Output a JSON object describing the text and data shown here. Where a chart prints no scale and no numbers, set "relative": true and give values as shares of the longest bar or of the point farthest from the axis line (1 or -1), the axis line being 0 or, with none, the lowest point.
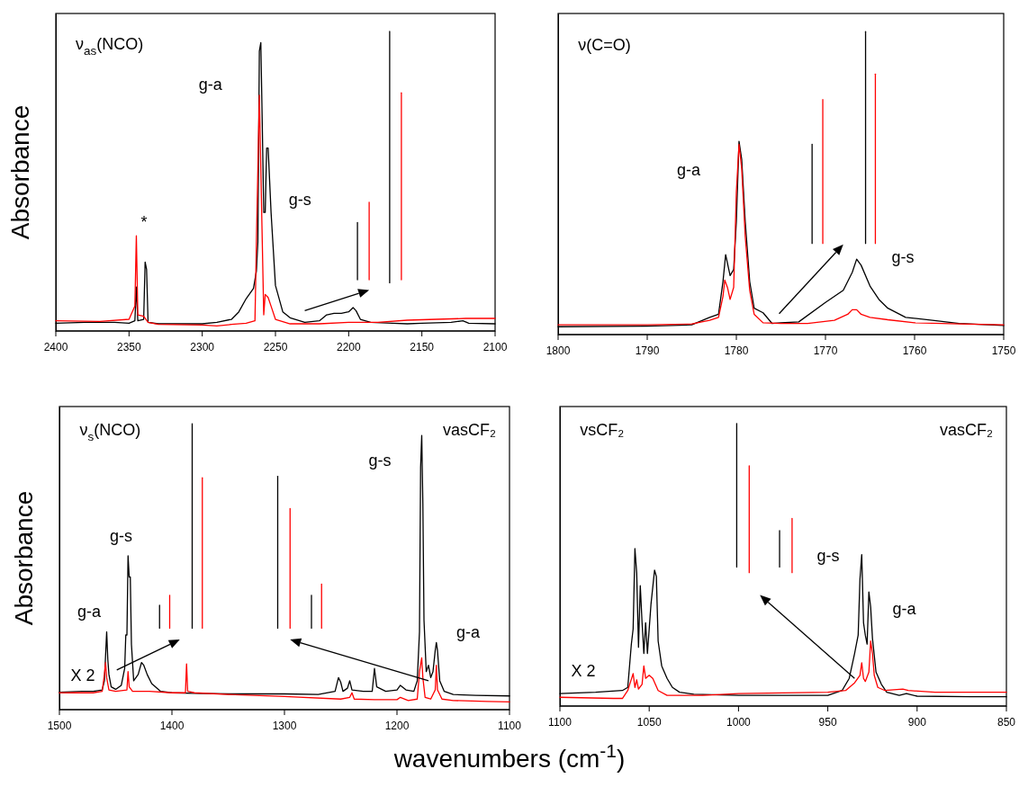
{
  "chart_data": [
    {
      "type": "line",
      "relative": true,
      "ylabel": "Absorbance",
      "xlim": [
        2400,
        2100
      ],
      "xticks": [
        2400,
        2350,
        2300,
        2250,
        2200,
        2150,
        2100
      ],
      "annotations": [
        "ν$_{as}$(NCO)",
        "*",
        "g-a",
        "g-s"
      ],
      "series": [
        {
          "color": "#000000",
          "x": [
            2400,
            2380,
            2360,
            2350,
            2346,
            2345,
            2344,
            2340,
            2339,
            2338,
            2337,
            2330,
            2300,
            2290,
            2280,
            2275,
            2270,
            2265,
            2263,
            2262,
            2261,
            2260,
            2259,
            2258,
            2257,
            2256,
            2255,
            2253,
            2250,
            2245,
            2240,
            2230,
            2220,
            2215,
            2210,
            2205,
            2200,
            2197,
            2195,
            2192,
            2185,
            2170,
            2160,
            2150,
            2130,
            2122,
            2118,
            2100
          ],
          "values": [
            0.026,
            0.029,
            0.029,
            0.026,
            0.034,
            0.147,
            0.034,
            0.039,
            0.23,
            0.205,
            0.029,
            0.024,
            0.024,
            0.029,
            0.039,
            0.064,
            0.108,
            0.142,
            0.2,
            0.298,
            0.934,
            0.963,
            0.689,
            0.396,
            0.396,
            0.611,
            0.611,
            0.396,
            0.152,
            0.064,
            0.044,
            0.029,
            0.034,
            0.054,
            0.059,
            0.059,
            0.064,
            0.078,
            0.068,
            0.039,
            0.029,
            0.026,
            0.024,
            0.026,
            0.029,
            0.034,
            0.026,
            0.024
          ]
        },
        {
          "color": "#ff0000",
          "x": [
            2400,
            2370,
            2350,
            2346,
            2345,
            2344,
            2340,
            2337,
            2330,
            2300,
            2290,
            2280,
            2270,
            2264,
            2263,
            2262,
            2261,
            2260,
            2259,
            2258,
            2257,
            2255,
            2253,
            2250,
            2240,
            2220,
            2200,
            2180,
            2160,
            2140,
            2120,
            2100
          ],
          "values": [
            0.034,
            0.032,
            0.039,
            0.083,
            0.318,
            0.054,
            0.049,
            0.029,
            0.022,
            0.02,
            0.017,
            0.022,
            0.026,
            0.034,
            0.298,
            0.543,
            0.787,
            0.543,
            0.298,
            0.054,
            0.122,
            0.112,
            0.083,
            0.039,
            0.024,
            0.024,
            0.029,
            0.029,
            0.036,
            0.039,
            0.042,
            0.042
          ]
        },
        {
          "color": "#000000",
          "x": [
            2194,
            2194
          ],
          "values": [
            0.171,
            0.362
          ]
        },
        {
          "color": "#ff0000",
          "x": [
            2186,
            2186
          ],
          "values": [
            0.171,
            0.43
          ]
        },
        {
          "color": "#000000",
          "x": [
            2172,
            2172
          ],
          "values": [
            0.161,
            1
          ]
        },
        {
          "color": "#ff0000",
          "x": [
            2164,
            2164
          ],
          "values": [
            0.171,
            0.795
          ]
        }
      ]
    },
    {
      "type": "line",
      "relative": true,
      "xlim": [
        1800,
        1750
      ],
      "xticks": [
        1800,
        1790,
        1780,
        1770,
        1760,
        1750
      ],
      "annotations": [
        "ν(C=O)",
        "g-a",
        "g-s"
      ],
      "series": [
        {
          "color": "#000000",
          "x": [
            1800,
            1790,
            1785,
            1783,
            1782,
            1781.5,
            1781.2,
            1780.7,
            1780.3,
            1780,
            1779.7,
            1779.4,
            1779,
            1778.5,
            1778,
            1777,
            1776,
            1775,
            1773,
            1770,
            1768,
            1767,
            1766.5,
            1766,
            1765,
            1764,
            1763,
            1761,
            1758,
            1755,
            1750
          ],
          "values": [
            0.026,
            0.028,
            0.032,
            0.057,
            0.067,
            0.175,
            0.264,
            0.195,
            0.215,
            0.372,
            0.638,
            0.579,
            0.372,
            0.175,
            0.087,
            0.072,
            0.037,
            0.039,
            0.042,
            0.106,
            0.146,
            0.205,
            0.249,
            0.229,
            0.16,
            0.116,
            0.087,
            0.057,
            0.047,
            0.037,
            0.03
          ]
        },
        {
          "color": "#ff0000",
          "x": [
            1800,
            1790,
            1785,
            1783,
            1782,
            1781.5,
            1781.3,
            1781,
            1780.7,
            1780.3,
            1780,
            1779.7,
            1779.4,
            1779,
            1778.5,
            1778,
            1777,
            1775,
            1772,
            1769,
            1767.5,
            1767,
            1766.5,
            1766,
            1765,
            1763,
            1760,
            1755,
            1750
          ],
          "values": [
            0.032,
            0.032,
            0.035,
            0.047,
            0.057,
            0.126,
            0.18,
            0.156,
            0.116,
            0.156,
            0.47,
            0.628,
            0.549,
            0.323,
            0.146,
            0.067,
            0.039,
            0.037,
            0.037,
            0.047,
            0.067,
            0.082,
            0.082,
            0.067,
            0.057,
            0.049,
            0.039,
            0.035,
            0.032
          ]
        },
        {
          "color": "#000000",
          "x": [
            1771.5,
            1771.5
          ],
          "values": [
            0.301,
            0.628
          ]
        },
        {
          "color": "#ff0000",
          "x": [
            1770.3,
            1770.3
          ],
          "values": [
            0.301,
            0.776
          ]
        },
        {
          "color": "#000000",
          "x": [
            1765.5,
            1765.5
          ],
          "values": [
            0.301,
            1
          ]
        },
        {
          "color": "#ff0000",
          "x": [
            1764.4,
            1764.4
          ],
          "values": [
            0.301,
            0.86
          ]
        }
      ]
    },
    {
      "type": "line",
      "relative": true,
      "ylabel": "Absorbance",
      "xlabel": "wavenumbers (cm$^{-1}$)",
      "xlim": [
        1500,
        1100
      ],
      "xticks": [
        1500,
        1400,
        1300,
        1200,
        1100
      ],
      "annotations": [
        "ν$_{s}$(NCO)",
        "vasCF₂",
        "X 2",
        "g-a",
        "g-s",
        "g-s",
        "g-a"
      ],
      "series": [
        {
          "color": "#000000",
          "x": [
            1500,
            1480,
            1470,
            1462,
            1460,
            1459,
            1458,
            1457,
            1456,
            1454,
            1450,
            1445,
            1442,
            1441,
            1440,
            1439,
            1438,
            1437,
            1436,
            1434,
            1430,
            1427,
            1425,
            1422,
            1418,
            1410,
            1400,
            1380,
            1350,
            1300,
            1270,
            1255,
            1252,
            1250,
            1248,
            1244,
            1242,
            1240,
            1230,
            1222,
            1220,
            1218,
            1210,
            1200,
            1197,
            1192,
            1185,
            1182,
            1180,
            1179,
            1178,
            1177,
            1176,
            1174,
            1172,
            1170,
            1168,
            1166,
            1165,
            1164,
            1162,
            1158,
            1150,
            1130,
            1100
          ],
          "values": [
            0.061,
            0.064,
            0.064,
            0.069,
            0.101,
            0.187,
            0.272,
            0.176,
            0.123,
            0.08,
            0.071,
            0.085,
            0.144,
            0.261,
            0.261,
            0.538,
            0.464,
            0.464,
            0.229,
            0.101,
            0.123,
            0.165,
            0.155,
            0.123,
            0.091,
            0.064,
            0.059,
            0.057,
            0.055,
            0.055,
            0.053,
            0.064,
            0.112,
            0.096,
            0.064,
            0.075,
            0.101,
            0.069,
            0.064,
            0.064,
            0.144,
            0.08,
            0.064,
            0.069,
            0.085,
            0.069,
            0.064,
            0.101,
            0.272,
            0.848,
            0.959,
            0.72,
            0.314,
            0.133,
            0.155,
            0.112,
            0.133,
            0.207,
            0.235,
            0.207,
            0.101,
            0.064,
            0.053,
            0.05,
            0.048
          ]
        },
        {
          "color": "#ff0000",
          "x": [
            1500,
            1470,
            1462,
            1460,
            1459,
            1458,
            1456,
            1450,
            1440,
            1439,
            1438,
            1435,
            1420,
            1400,
            1388,
            1387,
            1386,
            1380,
            1350,
            1300,
            1250,
            1242,
            1240,
            1238,
            1220,
            1200,
            1197,
            1190,
            1182,
            1180,
            1178,
            1177,
            1175,
            1170,
            1166,
            1165,
            1164,
            1160,
            1150,
            1120,
            1100
          ],
          "values": [
            0.059,
            0.059,
            0.064,
            0.123,
            0.165,
            0.112,
            0.069,
            0.064,
            0.069,
            0.133,
            0.08,
            0.064,
            0.064,
            0.059,
            0.059,
            0.16,
            0.064,
            0.059,
            0.053,
            0.046,
            0.037,
            0.043,
            0.059,
            0.037,
            0.035,
            0.035,
            0.043,
            0.032,
            0.037,
            0.133,
            0.181,
            0.112,
            0.043,
            0.037,
            0.069,
            0.155,
            0.069,
            0.037,
            0.032,
            0.029,
            0.027
          ]
        },
        {
          "color": "#000000",
          "x": [
            1411,
            1411
          ],
          "values": [
            0.285,
            0.365
          ]
        },
        {
          "color": "#ff0000",
          "x": [
            1402,
            1402
          ],
          "values": [
            0.285,
            0.4
          ]
        },
        {
          "color": "#000000",
          "x": [
            1382,
            1382
          ],
          "values": [
            0.285,
            1
          ]
        },
        {
          "color": "#ff0000",
          "x": [
            1373,
            1373
          ],
          "values": [
            0.285,
            0.811
          ]
        },
        {
          "color": "#000000",
          "x": [
            1306,
            1306
          ],
          "values": [
            0.285,
            0.816
          ]
        },
        {
          "color": "#ff0000",
          "x": [
            1295,
            1295
          ],
          "values": [
            0.285,
            0.703
          ]
        },
        {
          "color": "#000000",
          "x": [
            1276,
            1276
          ],
          "values": [
            0.285,
            0.4
          ]
        },
        {
          "color": "#ff0000",
          "x": [
            1267,
            1267
          ],
          "values": [
            0.285,
            0.439
          ]
        }
      ]
    },
    {
      "type": "line",
      "relative": true,
      "xlim": [
        1100,
        850
      ],
      "xticks": [
        1100,
        1050,
        1000,
        950,
        900,
        850
      ],
      "annotations": [
        "vsCF₂",
        "vasCF₂",
        "X 2",
        "g-s",
        "g-a"
      ],
      "series": [
        {
          "color": "#000000",
          "x": [
            1100,
            1080,
            1065,
            1062,
            1060,
            1059,
            1058,
            1057,
            1056,
            1055,
            1054,
            1053,
            1052,
            1051,
            1049,
            1047,
            1046,
            1045,
            1043,
            1040,
            1037,
            1033,
            1025,
            1000,
            950,
            942,
            938,
            935,
            933,
            932,
            931,
            930,
            929,
            928,
            927,
            926,
            925,
            923,
            920,
            917,
            910,
            906,
            900,
            870,
            850
          ],
          "values": [
            0.044,
            0.049,
            0.055,
            0.066,
            0.219,
            0.273,
            0.557,
            0.47,
            0.208,
            0.426,
            0.295,
            0.186,
            0.295,
            0.186,
            0.361,
            0.481,
            0.459,
            0.23,
            0.142,
            0.098,
            0.066,
            0.049,
            0.042,
            0.038,
            0.038,
            0.055,
            0.098,
            0.186,
            0.251,
            0.448,
            0.536,
            0.295,
            0.251,
            0.219,
            0.404,
            0.35,
            0.24,
            0.12,
            0.077,
            0.049,
            0.038,
            0.044,
            0.035,
            0.033,
            0.033
          ]
        },
        {
          "color": "#ff0000",
          "x": [
            1100,
            1070,
            1065,
            1062,
            1059,
            1058,
            1057,
            1056,
            1054,
            1053,
            1052,
            1050,
            1048,
            1045,
            1040,
            1020,
            1000,
            950,
            940,
            935,
            932,
            931,
            930,
            929,
            927,
            926,
            925,
            924,
            922,
            918,
            908,
            905,
            890,
            870,
            850
          ],
          "values": [
            0.031,
            0.027,
            0.027,
            0.055,
            0.115,
            0.066,
            0.093,
            0.06,
            0.077,
            0.142,
            0.098,
            0.109,
            0.098,
            0.055,
            0.038,
            0.038,
            0.044,
            0.049,
            0.055,
            0.082,
            0.109,
            0.153,
            0.098,
            0.087,
            0.12,
            0.23,
            0.186,
            0.109,
            0.066,
            0.055,
            0.06,
            0.055,
            0.049,
            0.049,
            0.049
          ]
        },
        {
          "color": "#000000",
          "x": [
            1001,
            1001
          ],
          "values": [
            0.492,
            1
          ]
        },
        {
          "color": "#ff0000",
          "x": [
            994,
            994
          ],
          "values": [
            0.472,
            0.85
          ]
        },
        {
          "color": "#000000",
          "x": [
            977,
            977
          ],
          "values": [
            0.492,
            0.621
          ]
        },
        {
          "color": "#ff0000",
          "x": [
            970,
            970
          ],
          "values": [
            0.472,
            0.664
          ]
        }
      ]
    }
  ]
}
